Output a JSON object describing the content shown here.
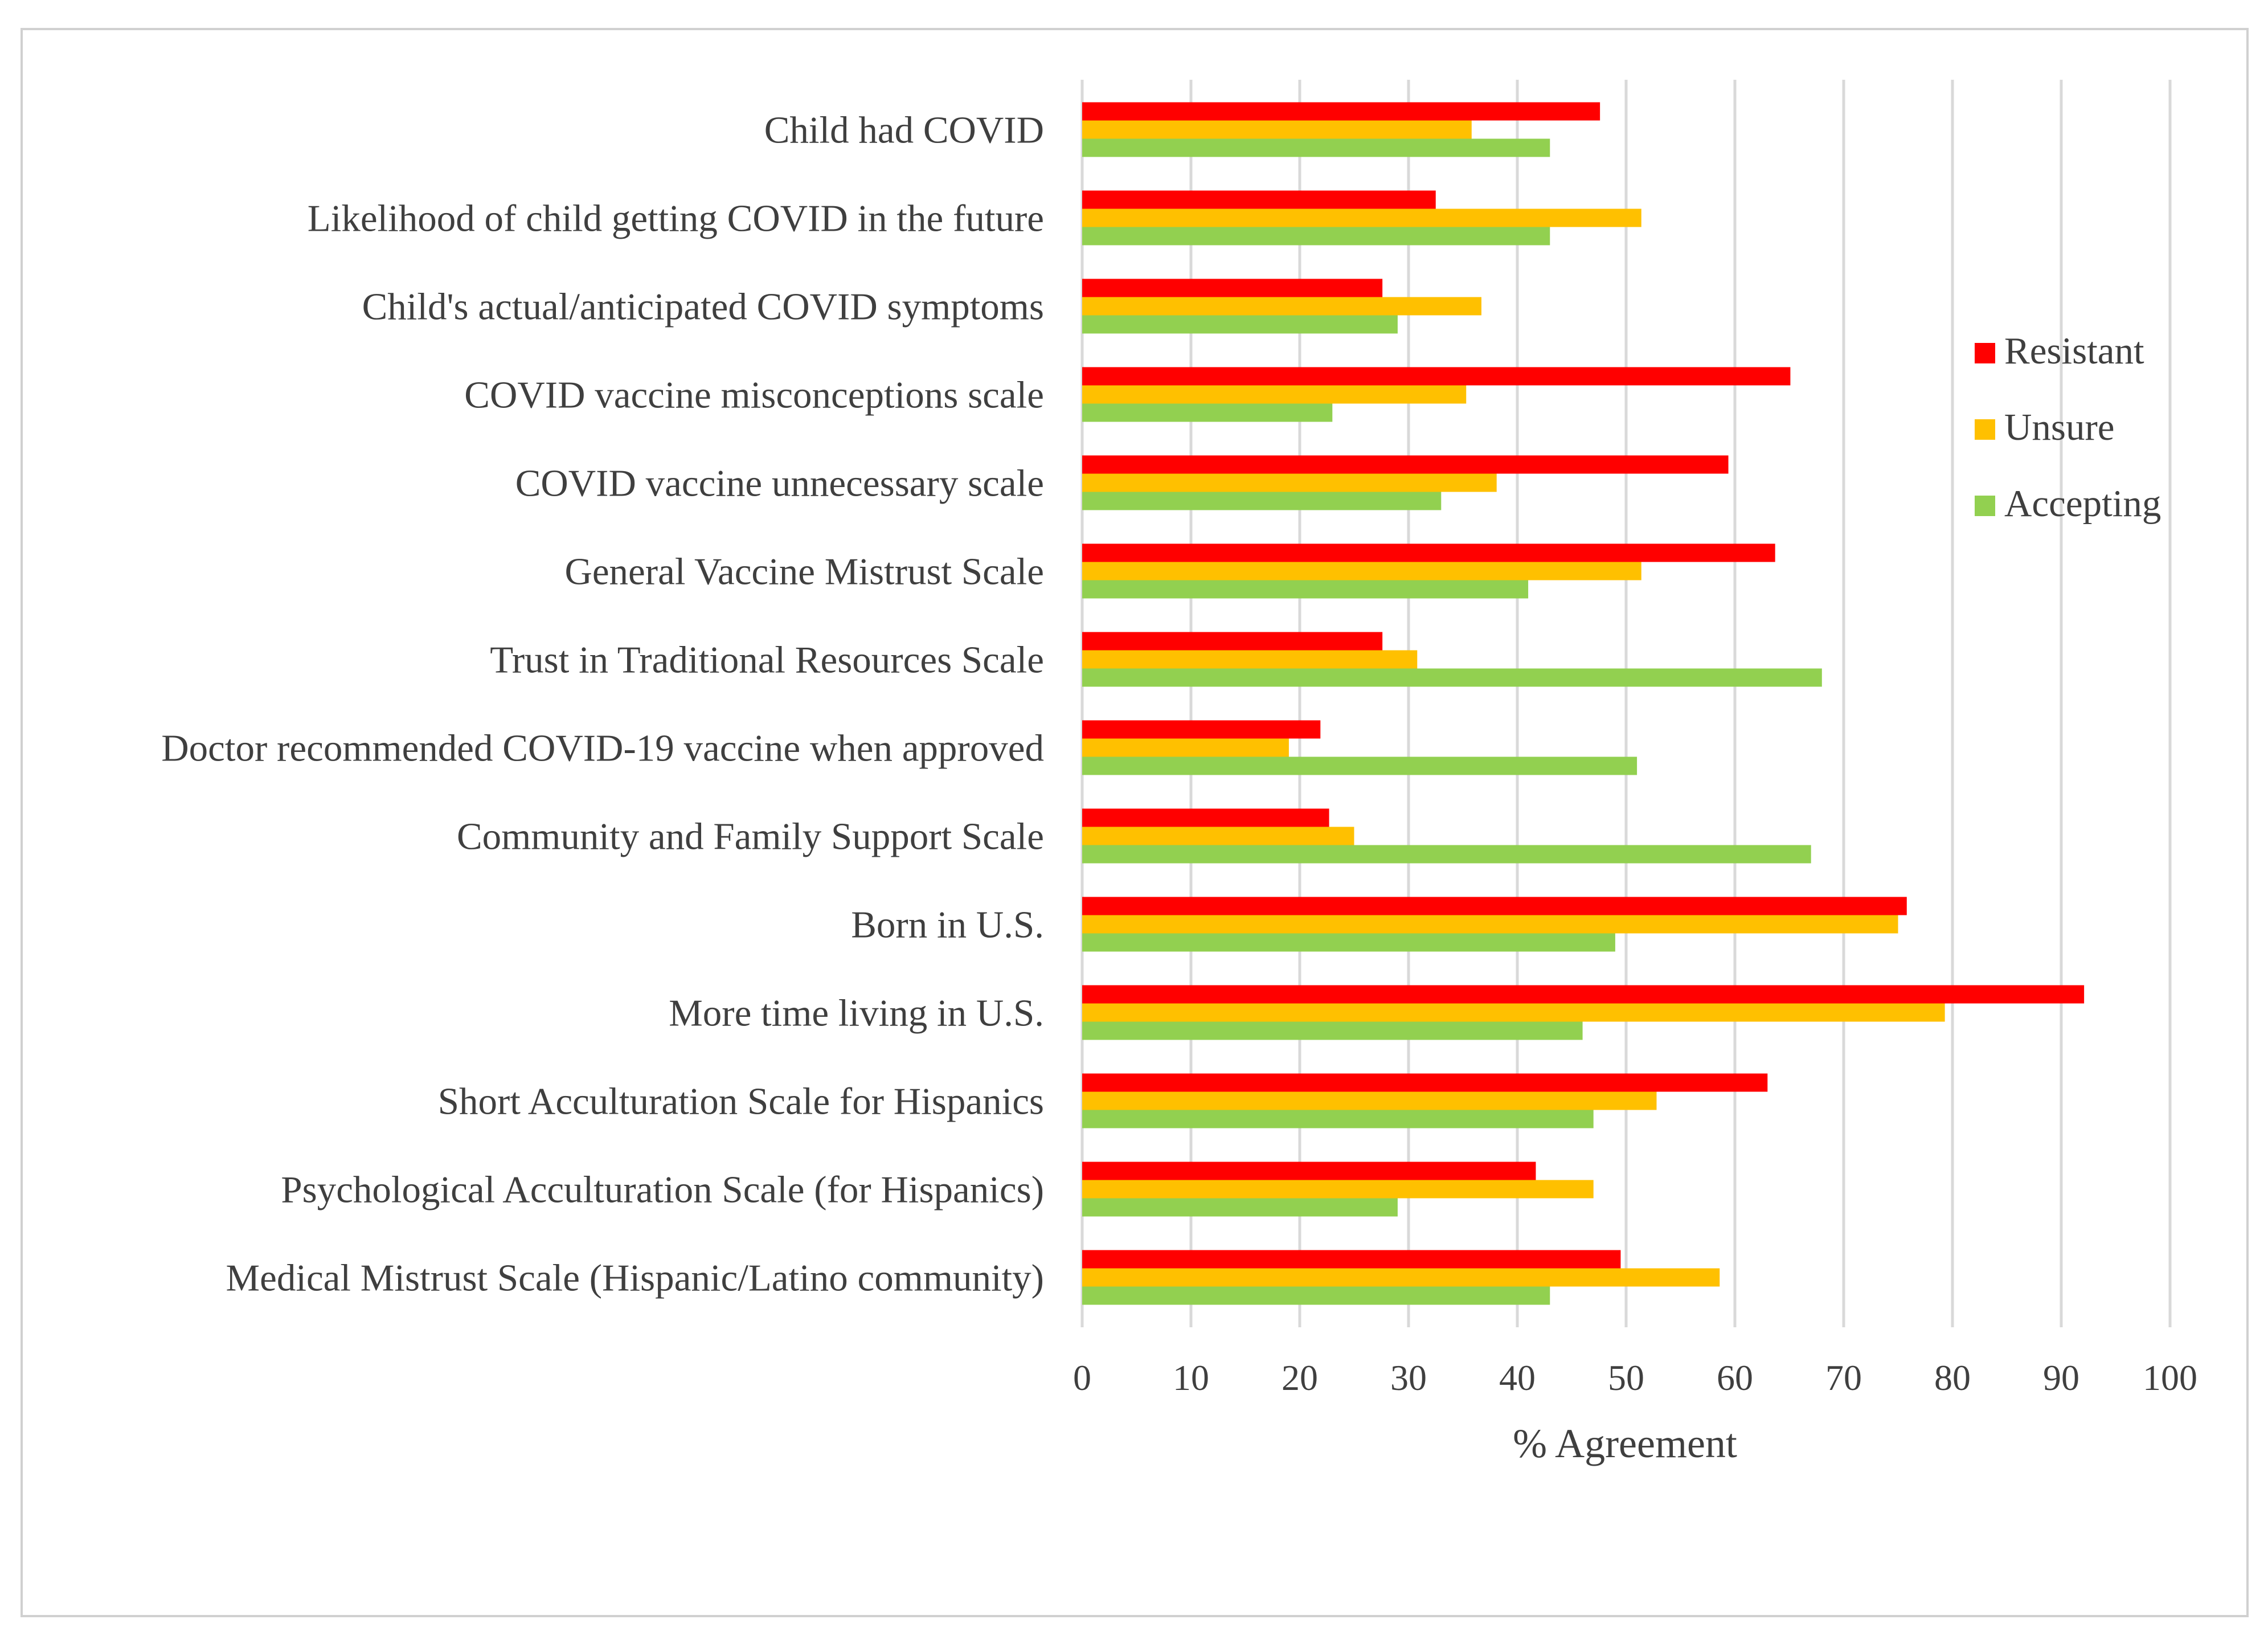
{
  "chart_data": {
    "type": "bar",
    "orientation": "horizontal",
    "title": "",
    "xlabel": "% Agreement",
    "ylabel": "",
    "xlim": [
      0,
      100
    ],
    "xticks": [
      0,
      10,
      20,
      30,
      40,
      50,
      60,
      70,
      80,
      90,
      100
    ],
    "grid": "vertical gridlines",
    "legend_position": "right",
    "categories": [
      "Child had COVID",
      "Likelihood of child getting COVID in the future",
      "Child's actual/anticipated COVID symptoms",
      "COVID vaccine misconceptions scale",
      "COVID vaccine unnecessary scale",
      "General Vaccine Mistrust Scale",
      "Trust in Traditional Resources Scale",
      "Doctor recommended COVID-19 vaccine when approved",
      "Community and Family Support Scale",
      "Born in U.S.",
      "More time living in U.S.",
      "Short Acculturation Scale for Hispanics",
      "Psychological Acculturation Scale (for Hispanics)",
      "Medical Mistrust Scale (Hispanic/Latino community)"
    ],
    "series": [
      {
        "name": "Resistant",
        "color": "#ff0000",
        "values": [
          47.6,
          32.5,
          27.6,
          65.1,
          59.4,
          63.7,
          27.6,
          21.9,
          22.7,
          75.8,
          92.1,
          63.0,
          41.7,
          49.5
        ]
      },
      {
        "name": "Unsure",
        "color": "#ffc000",
        "values": [
          35.8,
          51.4,
          36.7,
          35.3,
          38.1,
          51.4,
          30.8,
          19.0,
          25.0,
          75.0,
          79.3,
          52.8,
          47.0,
          58.6
        ]
      },
      {
        "name": "Accepting",
        "color": "#92d050",
        "values": [
          43.0,
          43.0,
          29.0,
          23.0,
          33.0,
          41.0,
          68.0,
          51.0,
          67.0,
          49.0,
          46.0,
          47.0,
          29.0,
          43.0
        ]
      }
    ]
  }
}
